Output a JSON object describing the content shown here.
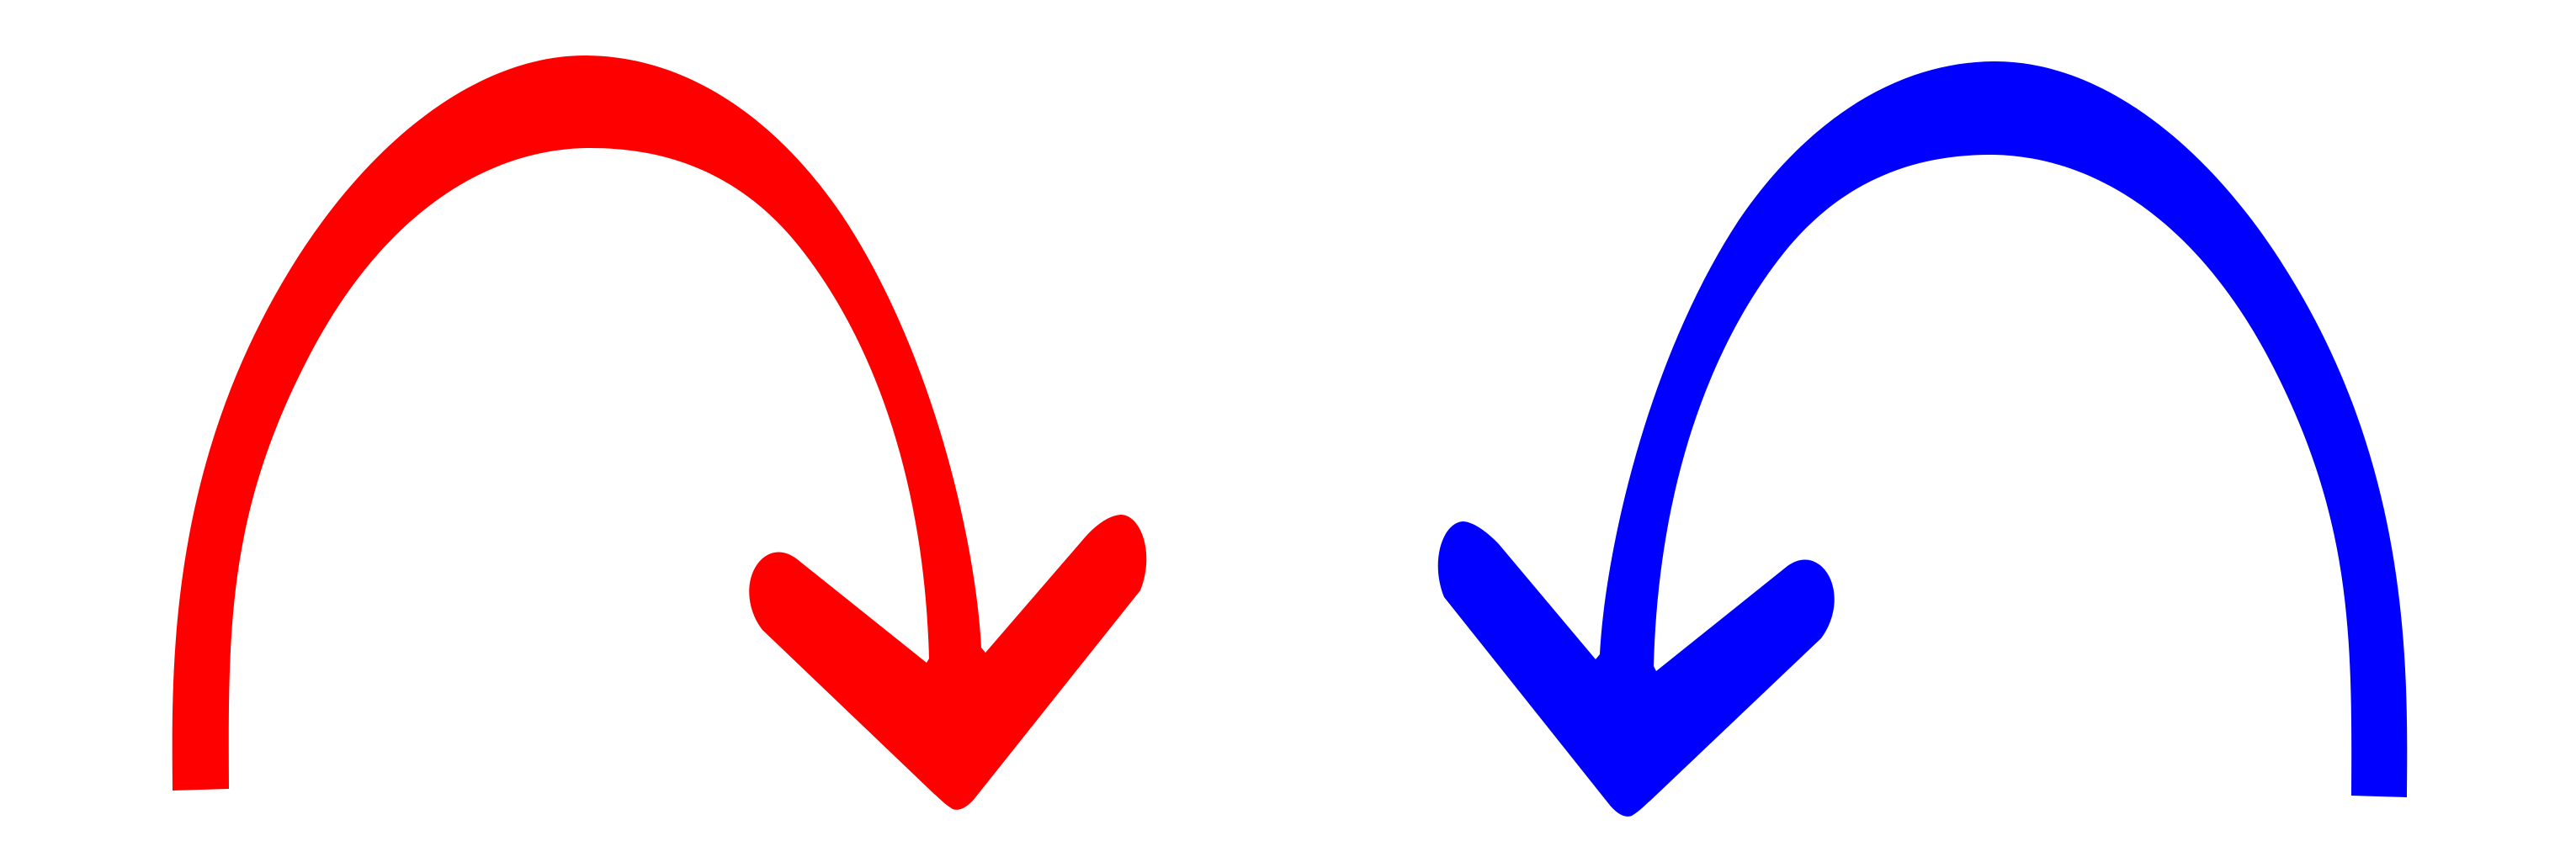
{
  "arrows": [
    {
      "name": "red-curved-arrow",
      "icon": "curved-arrow-right-down-icon",
      "color": "#ff0000",
      "direction": "clockwise"
    },
    {
      "name": "blue-curved-arrow",
      "icon": "curved-arrow-left-down-icon",
      "color": "#0000ff",
      "direction": "counterclockwise"
    }
  ]
}
